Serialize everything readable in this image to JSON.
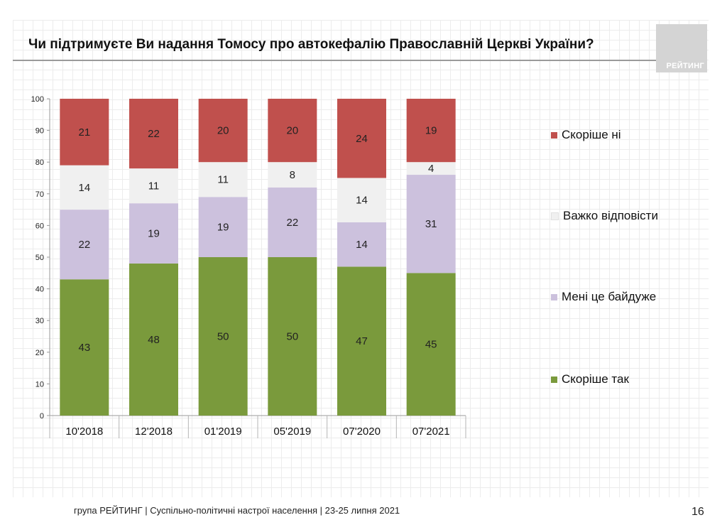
{
  "title": "Чи підтримуєте Ви надання Томосу про автокефалію Православній Церкві України?",
  "logo_text": "РЕЙТИНГ",
  "chart_data": {
    "type": "bar",
    "stacked": true,
    "categories": [
      "10'2018",
      "12'2018",
      "01'2019",
      "05'2019",
      "07'2020",
      "07'2021"
    ],
    "series": [
      {
        "name": "Скоріше так",
        "color": "#7a9a3c",
        "values": [
          43,
          48,
          50,
          50,
          47,
          45
        ]
      },
      {
        "name": "Мені це байдуже",
        "color": "#ccc1dd",
        "values": [
          22,
          19,
          19,
          22,
          14,
          31
        ]
      },
      {
        "name": "Важко відповісти",
        "color": "#f0f0f0",
        "values": [
          14,
          11,
          11,
          8,
          14,
          4
        ]
      },
      {
        "name": "Скоріше ні",
        "color": "#c0504d",
        "values": [
          21,
          22,
          20,
          20,
          24,
          19
        ]
      }
    ],
    "ylim": [
      0,
      100
    ],
    "yticks": [
      0,
      10,
      20,
      30,
      40,
      50,
      60,
      70,
      80,
      90,
      100
    ],
    "legend_position": "right"
  },
  "footer": "група РЕЙТИНГ | Суспільно-політичні настрої населення  | 23-25 липня 2021",
  "page_number": "16"
}
